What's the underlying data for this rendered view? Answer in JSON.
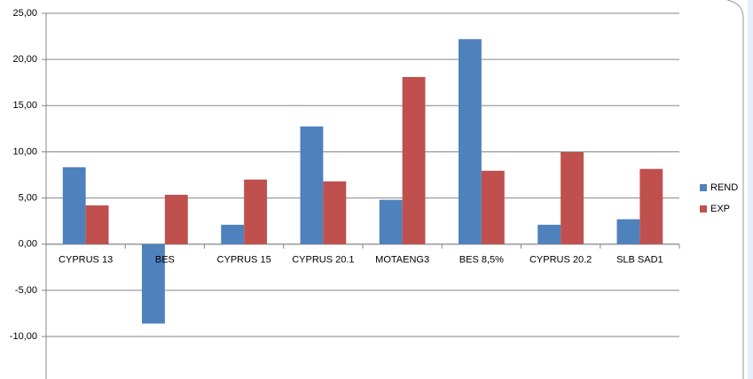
{
  "chart_data": {
    "type": "bar",
    "categories": [
      "CYPRUS 13",
      "BES",
      "CYPRUS 15",
      "CYPRUS 20.1",
      "MOTAENG3",
      "BES 8,5%",
      "CYPRUS 20.2",
      "SLB SAD1"
    ],
    "series": [
      {
        "name": "REND",
        "color": "#4f81bd",
        "values": [
          8.33,
          -8.6,
          2.1,
          12.75,
          4.8,
          22.2,
          2.1,
          2.7
        ]
      },
      {
        "name": "EXP",
        "color": "#c0504d",
        "values": [
          4.2,
          5.35,
          7.0,
          6.8,
          18.1,
          7.95,
          9.96,
          8.15
        ]
      }
    ],
    "ylim": [
      -14.6,
      25
    ],
    "yticks": [
      {
        "value": -10,
        "label": "-10,00"
      },
      {
        "value": -5,
        "label": "-5,00"
      },
      {
        "value": 0,
        "label": "0,00"
      },
      {
        "value": 5,
        "label": "5,00"
      },
      {
        "value": 10,
        "label": "10,00"
      },
      {
        "value": 15,
        "label": "15,00"
      },
      {
        "value": 20,
        "label": "20,00"
      },
      {
        "value": 25,
        "label": "25,00"
      }
    ],
    "grid": true,
    "legend": "right"
  }
}
